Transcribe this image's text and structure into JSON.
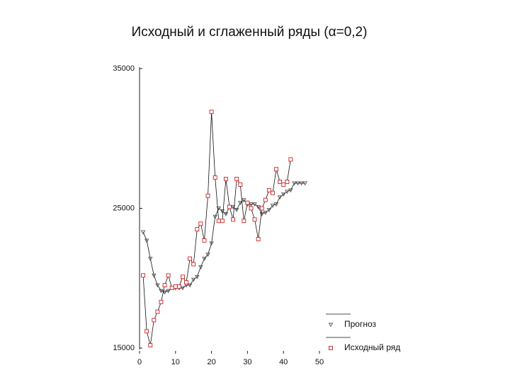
{
  "chart_data": {
    "type": "line",
    "title": "Исходный и сглаженный ряды (α=0,2)",
    "xlim": [
      0,
      50
    ],
    "xticks": [
      0,
      10,
      20,
      30,
      40,
      50
    ],
    "ylim": [
      15000,
      35000
    ],
    "yticks": [
      15000,
      25000,
      35000
    ],
    "legend": "bottom-right",
    "series": [
      {
        "name": "Прогноз",
        "color": "#555555",
        "marker": "triangle",
        "x": [
          1,
          2,
          3,
          4,
          5,
          6,
          7,
          8,
          9,
          10,
          11,
          12,
          13,
          14,
          15,
          16,
          17,
          18,
          19,
          20,
          21,
          22,
          23,
          24,
          25,
          26,
          27,
          28,
          29,
          30,
          31,
          32,
          33,
          34,
          35,
          36,
          37,
          38,
          39,
          40,
          41,
          42,
          43,
          44,
          45,
          46
        ],
        "values": [
          23300,
          22700,
          21400,
          20200,
          19500,
          19100,
          19000,
          19100,
          19300,
          19300,
          19300,
          19300,
          19500,
          19500,
          19900,
          20100,
          20800,
          21400,
          21700,
          22500,
          24400,
          25000,
          24800,
          24600,
          25100,
          25100,
          24900,
          25400,
          25600,
          25300,
          25300,
          25300,
          25100,
          24600,
          24700,
          24900,
          25200,
          25300,
          25800,
          26000,
          26200,
          26300,
          26800,
          26800,
          26800,
          26800
        ]
      },
      {
        "name": "Исходный ряд",
        "color": "#cc2222",
        "marker": "square",
        "x": [
          1,
          2,
          3,
          4,
          5,
          6,
          7,
          8,
          9,
          10,
          11,
          12,
          13,
          14,
          15,
          16,
          17,
          18,
          19,
          20,
          21,
          22,
          23,
          24,
          25,
          26,
          27,
          28,
          29,
          30,
          31,
          32,
          33,
          34,
          35,
          36,
          37,
          38,
          39,
          40,
          41,
          42
        ],
        "values": [
          20200,
          16200,
          15200,
          17000,
          17600,
          18300,
          19500,
          20200,
          19300,
          19400,
          19400,
          20100,
          19700,
          21400,
          21000,
          23500,
          23900,
          22700,
          25900,
          31900,
          27200,
          24100,
          24100,
          27100,
          25100,
          24200,
          27100,
          26700,
          24100,
          25400,
          25000,
          24200,
          22800,
          25000,
          25600,
          26300,
          26100,
          27800,
          26900,
          26700,
          26900,
          28500
        ]
      }
    ]
  }
}
